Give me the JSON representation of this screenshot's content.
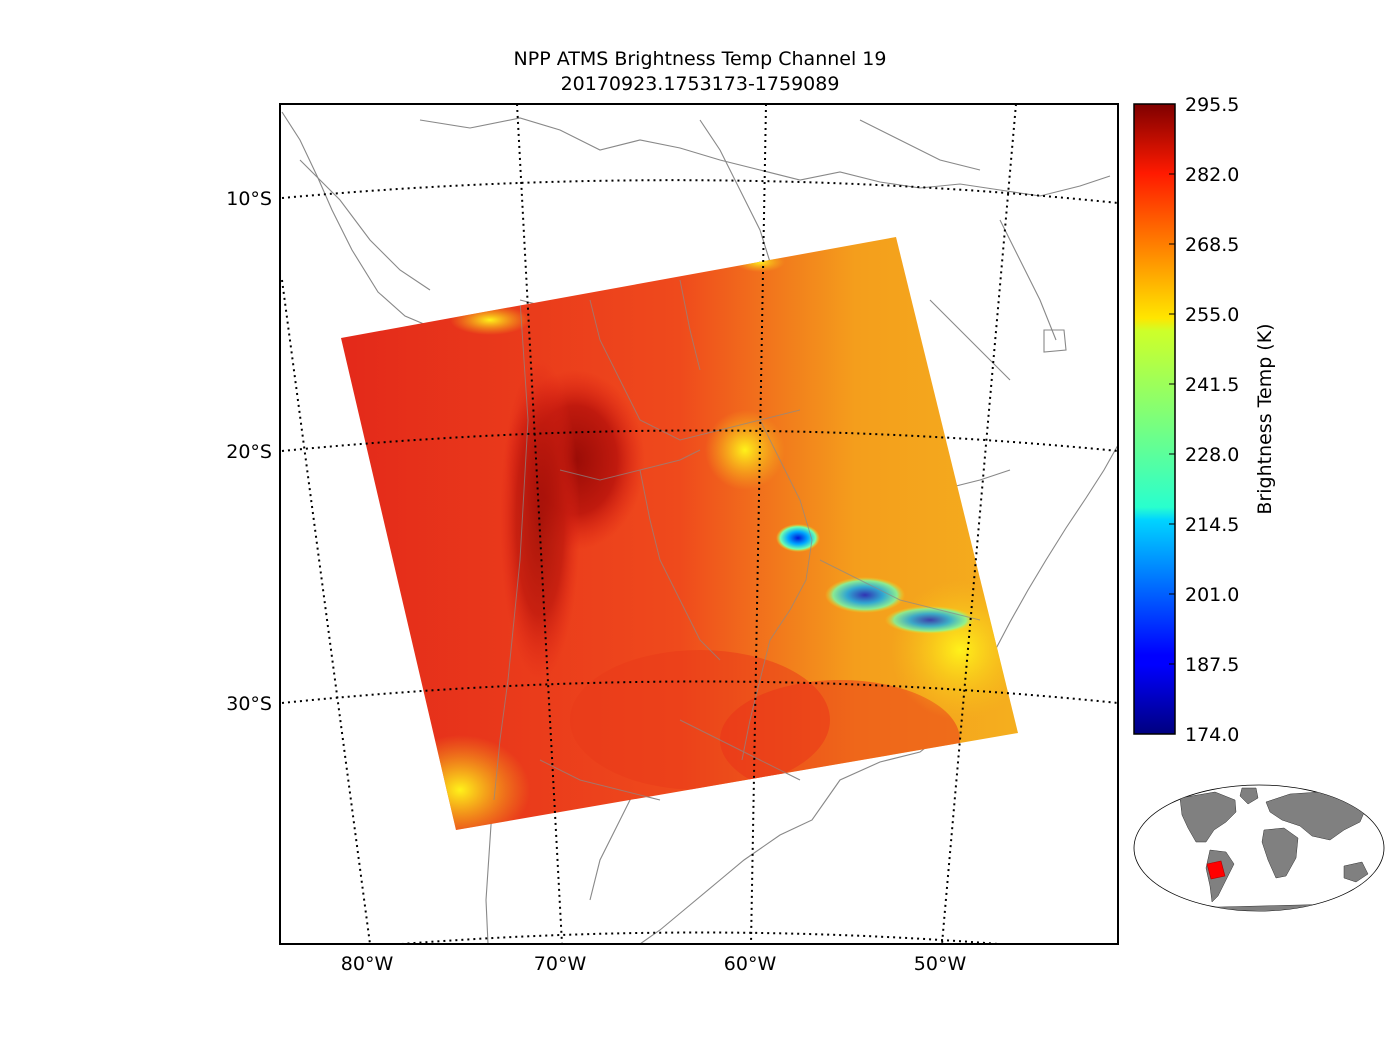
{
  "title_line1": "NPP ATMS Brightness Temp Channel 19",
  "title_line2": "20170923.1753173-1759089",
  "lat_labels": [
    "10°S",
    "20°S",
    "30°S"
  ],
  "lon_labels": [
    "80°W",
    "70°W",
    "60°W",
    "50°W"
  ],
  "colorbar": {
    "label": "Brightness Temp (K)",
    "min": 174.0,
    "max": 295.5,
    "ticks": [
      "295.5",
      "282.0",
      "268.5",
      "255.0",
      "241.5",
      "228.0",
      "214.5",
      "201.0",
      "187.5",
      "174.0"
    ],
    "colormap": "jet"
  },
  "colors": {
    "swath_hot": "#e8251a",
    "swath_warm": "#f6a21a",
    "coast_lines": "#888888",
    "land_inset": "#808080",
    "inset_highlight": "#ff0000"
  },
  "inset": {
    "name": "world-locator-map"
  }
}
